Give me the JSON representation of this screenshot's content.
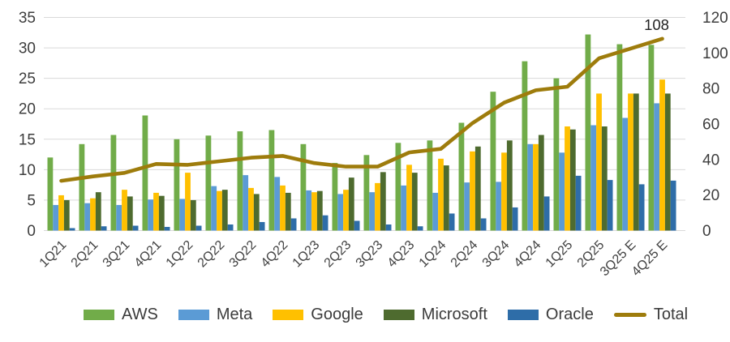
{
  "chart_data": {
    "type": "bar",
    "subtype": "grouped-bars-with-line-overlay",
    "title": "",
    "categories": [
      "1Q21",
      "2Q21",
      "3Q21",
      "4Q21",
      "1Q22",
      "2Q22",
      "3Q22",
      "4Q22",
      "1Q23",
      "2Q23",
      "3Q23",
      "4Q23",
      "1Q24",
      "2Q24",
      "3Q24",
      "4Q24",
      "1Q25",
      "2Q25",
      "3Q25 E",
      "4Q25 E"
    ],
    "series": [
      {
        "name": "AWS",
        "kind": "bar",
        "axis": "left",
        "color": "#71AC49",
        "values": [
          12.0,
          14.2,
          15.7,
          18.9,
          15.0,
          15.6,
          16.3,
          16.5,
          14.2,
          11.1,
          12.4,
          14.4,
          14.8,
          17.7,
          22.8,
          27.8,
          25.0,
          32.2,
          30.6,
          30.5
        ]
      },
      {
        "name": "Meta",
        "kind": "bar",
        "axis": "left",
        "color": "#5B9BD5",
        "values": [
          4.2,
          4.5,
          4.2,
          5.1,
          5.2,
          7.3,
          9.1,
          8.8,
          6.6,
          6.0,
          6.3,
          7.4,
          6.2,
          7.9,
          8.0,
          14.2,
          12.8,
          17.3,
          18.5,
          20.9
        ]
      },
      {
        "name": "Google",
        "kind": "bar",
        "axis": "left",
        "color": "#FFC000",
        "values": [
          5.8,
          5.3,
          6.7,
          6.2,
          9.5,
          6.5,
          7.0,
          7.4,
          6.3,
          6.7,
          7.8,
          10.8,
          11.8,
          13.0,
          12.8,
          14.2,
          17.1,
          22.5,
          22.5,
          24.8
        ]
      },
      {
        "name": "Microsoft",
        "kind": "bar",
        "axis": "left",
        "color": "#4E6B2F",
        "values": [
          5.0,
          6.3,
          5.6,
          5.7,
          5.0,
          6.7,
          6.0,
          6.2,
          6.5,
          8.7,
          9.6,
          9.5,
          10.7,
          13.8,
          14.8,
          15.7,
          16.6,
          17.1,
          22.5,
          22.5
        ]
      },
      {
        "name": "Oracle",
        "kind": "bar",
        "axis": "left",
        "color": "#2E6DA8",
        "values": [
          0.4,
          0.7,
          0.8,
          0.6,
          0.8,
          1.0,
          1.4,
          2.0,
          2.5,
          1.6,
          1.0,
          0.7,
          2.8,
          2.0,
          3.8,
          5.6,
          9.0,
          8.3,
          7.6,
          8.2
        ]
      },
      {
        "name": "Total",
        "kind": "line",
        "axis": "right",
        "color": "#9E7C0C",
        "values": [
          28,
          30.5,
          32.5,
          37.5,
          37,
          39,
          41,
          42,
          38,
          36,
          36,
          44,
          46,
          60.5,
          72,
          79,
          81,
          97,
          102.5,
          108
        ]
      }
    ],
    "left_axis": {
      "min": 0,
      "max": 35,
      "step": 5,
      "tick_labels": [
        "0",
        "5",
        "10",
        "15",
        "20",
        "25",
        "30",
        "35"
      ]
    },
    "right_axis": {
      "min": 0,
      "max": 120,
      "step": 20,
      "tick_labels": [
        "0",
        "20",
        "40",
        "60",
        "80",
        "100",
        "120"
      ]
    },
    "annotation": {
      "text": "108",
      "series": "Total",
      "category_index": 19,
      "value": 108
    },
    "grid": true,
    "legend_position": "bottom",
    "gridline_color": "#d9d9d9"
  },
  "legend": {
    "items": [
      {
        "label": "AWS",
        "color": "#71AC49",
        "shape": "rect"
      },
      {
        "label": "Meta",
        "color": "#5B9BD5",
        "shape": "rect"
      },
      {
        "label": "Google",
        "color": "#FFC000",
        "shape": "rect"
      },
      {
        "label": "Microsoft",
        "color": "#4E6B2F",
        "shape": "rect"
      },
      {
        "label": "Oracle",
        "color": "#2E6DA8",
        "shape": "rect"
      },
      {
        "label": "Total",
        "color": "#9E7C0C",
        "shape": "line"
      }
    ]
  }
}
